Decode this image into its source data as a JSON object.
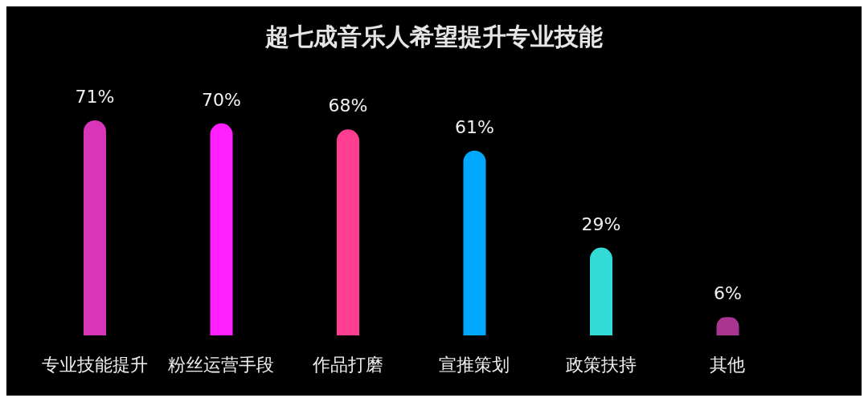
{
  "chart_data": {
    "type": "bar",
    "title": "超七成音乐人希望提升专业技能",
    "categories": [
      "专业技能提升",
      "粉丝运营手段",
      "作品打磨",
      "宣推策划",
      "政策扶持",
      "其他"
    ],
    "values": [
      71,
      70,
      68,
      61,
      29,
      6
    ],
    "colors": [
      "#d935b8",
      "#ff1fff",
      "#ff3e92",
      "#00a8ff",
      "#33dbd6",
      "#a8358f"
    ],
    "value_labels": [
      "71%",
      "70%",
      "68%",
      "61%",
      "29%",
      "6%"
    ]
  }
}
